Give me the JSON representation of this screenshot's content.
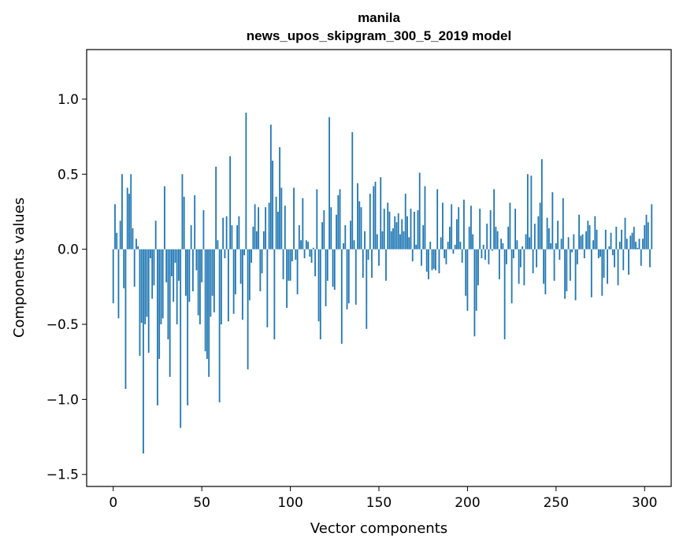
{
  "chart_data": {
    "type": "bar",
    "title_line1": "manila",
    "title_line2": "news_upos_skipgram_300_5_2019 model",
    "xlabel": "Vector components",
    "ylabel": "Components values",
    "xlim": [
      -15,
      315
    ],
    "ylim": [
      -1.58,
      1.33
    ],
    "xticks": [
      0,
      50,
      100,
      150,
      200,
      250,
      300
    ],
    "xtick_labels": [
      "0",
      "50",
      "100",
      "150",
      "200",
      "250",
      "300"
    ],
    "yticks": [
      -1.5,
      -1.0,
      -0.5,
      0.0,
      0.5,
      1.0
    ],
    "ytick_labels": [
      "−1.5",
      "−1.0",
      "−0.5",
      "0.0",
      "0.5",
      "1.0"
    ],
    "bar_color": "#1f77b4",
    "grid": false,
    "values": [
      -0.36,
      0.3,
      0.11,
      -0.46,
      0.19,
      0.5,
      -0.26,
      -0.93,
      0.41,
      0.37,
      0.5,
      0.14,
      -0.25,
      0.07,
      0.02,
      -0.71,
      -0.49,
      -1.36,
      -0.5,
      -0.45,
      -0.69,
      -0.06,
      -0.33,
      -0.24,
      0.19,
      -1.04,
      -0.73,
      -0.5,
      -0.46,
      0.42,
      -0.22,
      -0.6,
      -0.85,
      -0.18,
      -0.35,
      -0.09,
      -0.5,
      -0.21,
      -1.19,
      0.5,
      0.35,
      -0.31,
      -1.04,
      -0.35,
      0.16,
      -0.28,
      0.36,
      -0.14,
      -0.44,
      -0.5,
      -0.22,
      0.26,
      -0.68,
      -0.73,
      -0.85,
      -0.45,
      -0.31,
      -0.42,
      0.55,
      0.06,
      -1.02,
      -0.5,
      0.21,
      -0.06,
      0.22,
      -0.48,
      0.62,
      0.16,
      -0.43,
      -0.3,
      0.16,
      0.22,
      -0.23,
      -0.47,
      -0.04,
      0.91,
      -0.8,
      -0.34,
      -0.09,
      0.15,
      0.3,
      0.12,
      0.28,
      -0.28,
      -0.16,
      0.12,
      0.28,
      -0.52,
      0.31,
      0.83,
      0.59,
      -0.6,
      0.35,
      0.25,
      0.68,
      0.41,
      -0.2,
      0.29,
      -0.39,
      -0.21,
      -0.21,
      -0.08,
      0.41,
      -0.07,
      -0.3,
      0.16,
      0.06,
      0.34,
      -0.06,
      0.06,
      0.05,
      -0.05,
      -0.09,
      0.01,
      -0.18,
      0.4,
      -0.48,
      -0.6,
      0.18,
      0.26,
      -0.38,
      -0.21,
      0.88,
      0.28,
      -0.25,
      -0.27,
      0.23,
      0.36,
      0.4,
      -0.63,
      0.04,
      0.16,
      -0.4,
      -0.36,
      0.19,
      0.78,
      0.06,
      -0.37,
      0.44,
      0.32,
      0.28,
      -0.19,
      0.12,
      -0.53,
      -0.07,
      0.37,
      -0.19,
      0.42,
      0.45,
      0.1,
      -0.11,
      0.48,
      0.12,
      0.27,
      -0.21,
      0.31,
      0.25,
      0.12,
      0.14,
      0.22,
      0.18,
      0.24,
      0.1,
      0.2,
      0.12,
      0.37,
      0.22,
      0.08,
      0.27,
      -0.08,
      0.25,
      0.03,
      0.26,
      0.51,
      -0.11,
      0.16,
      0.42,
      -0.15,
      -0.2,
      0.05,
      -0.14,
      -0.13,
      -0.14,
      0.4,
      -0.16,
      0.08,
      0.31,
      -0.06,
      -0.1,
      0.05,
      0.15,
      0.3,
      -0.03,
      0.03,
      0.2,
      0.28,
      0.05,
      -0.09,
      0.33,
      -0.31,
      -0.41,
      0.15,
      0.29,
      0.1,
      -0.58,
      -0.41,
      -0.24,
      0.27,
      -0.06,
      0.03,
      -0.07,
      0.17,
      -0.1,
      0.26,
      -0.01,
      0.4,
      0.15,
      0.12,
      -0.2,
      0.07,
      0.04,
      -0.6,
      -0.1,
      0.15,
      0.31,
      -0.36,
      -0.06,
      0.27,
      0.06,
      -0.23,
      -0.12,
      0.02,
      -0.24,
      0.1,
      0.5,
      0.08,
      0.49,
      -0.16,
      0.17,
      -0.12,
      0.22,
      0.31,
      0.6,
      -0.23,
      -0.3,
      0.21,
      0.14,
      0.04,
      0.38,
      -0.21,
      0.04,
      0.19,
      -0.07,
      0.07,
      0.34,
      -0.33,
      -0.28,
      0.08,
      -0.21,
      -0.02,
      0.1,
      -0.34,
      -0.1,
      0.23,
      0.09,
      0.1,
      -0.06,
      0.12,
      0.19,
      0.16,
      -0.32,
      0.06,
      0.22,
      0.13,
      -0.06,
      -0.05,
      -0.31,
      -0.19,
      0.13,
      -0.23,
      0.02,
      0.11,
      -0.04,
      -0.12,
      0.15,
      -0.24,
      0.05,
      0.13,
      -0.14,
      0.21,
      0.07,
      -0.17,
      0.09,
      0.11,
      0.15,
      0.05,
      0.01,
      0.07,
      -0.11,
      0.07,
      0.16,
      0.23,
      0.18,
      -0.12,
      0.3
    ]
  }
}
